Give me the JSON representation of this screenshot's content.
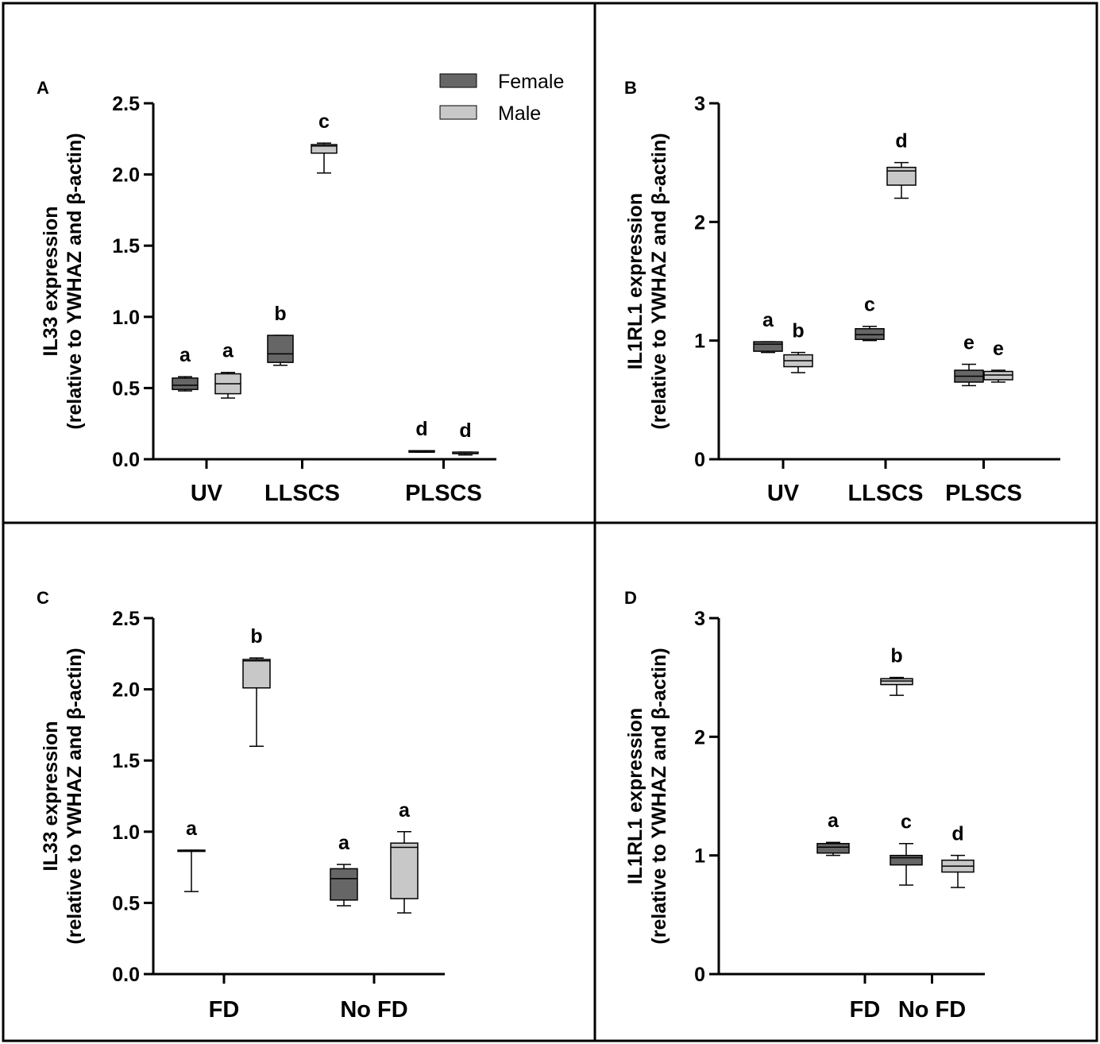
{
  "legend": [
    {
      "name": "Female",
      "color": "#666666"
    },
    {
      "name": "Male",
      "color": "#c8c8c8"
    }
  ],
  "chart_data": [
    {
      "panel": "A",
      "type": "box",
      "ylabel": "IL33 expression",
      "ylabel2": "(relative to YWHAZ and β-actin)",
      "ylim": [
        0,
        2.5
      ],
      "yticks": [
        0.0,
        0.5,
        1.0,
        1.5,
        2.0,
        2.5
      ],
      "ytick_labels": [
        "0.0",
        "0.5",
        "1.0",
        "1.5",
        "2.0",
        "2.5"
      ],
      "categories": [
        "UV",
        "LLSCS",
        "PLSCS"
      ],
      "series": [
        {
          "name": "Female",
          "boxes": [
            {
              "min": 0.48,
              "q1": 0.49,
              "median": 0.52,
              "q3": 0.57,
              "max": 0.58,
              "letter": "a"
            },
            {
              "min": 0.66,
              "q1": 0.68,
              "median": 0.74,
              "q3": 0.87,
              "max": 0.87,
              "letter": "b"
            },
            {
              "min": 0.05,
              "q1": 0.05,
              "median": 0.05,
              "q3": 0.06,
              "max": 0.06,
              "letter": "d"
            }
          ]
        },
        {
          "name": "Male",
          "boxes": [
            {
              "min": 0.43,
              "q1": 0.46,
              "median": 0.53,
              "q3": 0.6,
              "max": 0.61,
              "letter": "a"
            },
            {
              "min": 2.01,
              "q1": 2.15,
              "median": 2.2,
              "q3": 2.21,
              "max": 2.22,
              "letter": "c"
            },
            {
              "min": 0.03,
              "q1": 0.04,
              "median": 0.04,
              "q3": 0.05,
              "max": 0.05,
              "letter": "d"
            }
          ]
        }
      ]
    },
    {
      "panel": "B",
      "type": "box",
      "ylabel": "IL1RL1 expression",
      "ylabel2": "(relative to YWHAZ and β-actin)",
      "ylim": [
        0,
        3
      ],
      "yticks": [
        0,
        1,
        2,
        3
      ],
      "ytick_labels": [
        "0",
        "1",
        "2",
        "3"
      ],
      "categories": [
        "UV",
        "LLSCS",
        "PLSCS"
      ],
      "series": [
        {
          "name": "Female",
          "boxes": [
            {
              "min": 0.9,
              "q1": 0.91,
              "median": 0.97,
              "q3": 0.99,
              "max": 0.99,
              "letter": "a"
            },
            {
              "min": 1.0,
              "q1": 1.01,
              "median": 1.05,
              "q3": 1.1,
              "max": 1.12,
              "letter": "c"
            },
            {
              "min": 0.62,
              "q1": 0.65,
              "median": 0.7,
              "q3": 0.75,
              "max": 0.8,
              "letter": "e"
            }
          ]
        },
        {
          "name": "Male",
          "boxes": [
            {
              "min": 0.73,
              "q1": 0.78,
              "median": 0.83,
              "q3": 0.88,
              "max": 0.9,
              "letter": "b"
            },
            {
              "min": 2.2,
              "q1": 2.31,
              "median": 2.43,
              "q3": 2.46,
              "max": 2.5,
              "letter": "d"
            },
            {
              "min": 0.65,
              "q1": 0.67,
              "median": 0.71,
              "q3": 0.74,
              "max": 0.75,
              "letter": "e"
            }
          ]
        }
      ]
    },
    {
      "panel": "C",
      "type": "box",
      "ylabel": "IL33 expression",
      "ylabel2": "(relative to YWHAZ and β-actin)",
      "ylim": [
        0,
        2.5
      ],
      "yticks": [
        0.0,
        0.5,
        1.0,
        1.5,
        2.0,
        2.5
      ],
      "ytick_labels": [
        "0.0",
        "0.5",
        "1.0",
        "1.5",
        "2.0",
        "2.5"
      ],
      "categories": [
        "FD",
        "No FD"
      ],
      "series": [
        {
          "name": "Female",
          "boxes": [
            {
              "min": 0.58,
              "q1": 0.87,
              "median": 0.87,
              "q3": 0.87,
              "max": 0.87,
              "letter": "a"
            },
            {
              "min": 0.48,
              "q1": 0.52,
              "median": 0.67,
              "q3": 0.74,
              "max": 0.77,
              "letter": "a"
            }
          ]
        },
        {
          "name": "Male",
          "boxes": [
            {
              "min": 1.6,
              "q1": 2.01,
              "median": 2.2,
              "q3": 2.21,
              "max": 2.22,
              "letter": "b"
            },
            {
              "min": 0.43,
              "q1": 0.53,
              "median": 0.89,
              "q3": 0.92,
              "max": 1.0,
              "letter": "a"
            }
          ]
        }
      ]
    },
    {
      "panel": "D",
      "type": "box",
      "ylabel": "IL1RL1 expression",
      "ylabel2": "(relative to YWHAZ and β-actin)",
      "ylim": [
        0,
        3
      ],
      "yticks": [
        0,
        1,
        2,
        3
      ],
      "ytick_labels": [
        "0",
        "1",
        "2",
        "3"
      ],
      "categories": [
        "FD",
        "No FD"
      ],
      "series": [
        {
          "name": "Female",
          "boxes": [
            {
              "min": 1.0,
              "q1": 1.02,
              "median": 1.07,
              "q3": 1.1,
              "max": 1.11,
              "letter": "a"
            },
            {
              "min": 0.75,
              "q1": 0.92,
              "median": 0.98,
              "q3": 1.0,
              "max": 1.1,
              "letter": "c"
            }
          ]
        },
        {
          "name": "Male",
          "boxes": [
            {
              "min": 2.35,
              "q1": 2.44,
              "median": 2.47,
              "q3": 2.49,
              "max": 2.5,
              "letter": "b"
            },
            {
              "min": 0.73,
              "q1": 0.86,
              "median": 0.91,
              "q3": 0.96,
              "max": 1.0,
              "letter": "d"
            }
          ]
        }
      ]
    }
  ]
}
